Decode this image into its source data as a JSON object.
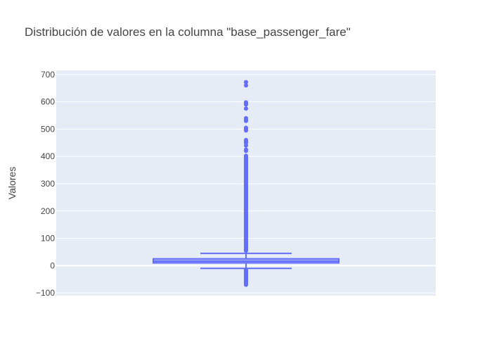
{
  "chart_data": {
    "type": "box",
    "title": "Distribución de valores en la columna \"base_passenger_fare\"",
    "xlabel": "",
    "ylabel": "Valores",
    "ylim": [
      -110,
      715
    ],
    "yticks": [
      -100,
      0,
      100,
      200,
      300,
      400,
      500,
      600,
      700
    ],
    "ytick_labels": [
      "−100",
      "0",
      "100",
      "200",
      "300",
      "400",
      "500",
      "600",
      "700"
    ],
    "grid": true,
    "colors": {
      "plot_bg": "#e5ecf6",
      "grid": "#ffffff",
      "box": "#636efa",
      "box_fill": "rgba(99,110,250,0.5)",
      "text": "#444444"
    },
    "series": [
      {
        "box": {
          "lower_fence": -10,
          "q1": 10,
          "median": 16,
          "q3": 25,
          "upper_fence": 45
        },
        "outlier_band_low": [
          -70,
          -12
        ],
        "outlier_band_high": [
          47,
          410
        ],
        "outliers": [
          -70,
          -65,
          -60,
          -55,
          -50,
          -45,
          -40,
          -35,
          -30,
          -25,
          -20,
          -15,
          420,
          425,
          440,
          450,
          455,
          460,
          495,
          500,
          505,
          530,
          535,
          540,
          575,
          590,
          595,
          598,
          660,
          672
        ]
      }
    ]
  }
}
